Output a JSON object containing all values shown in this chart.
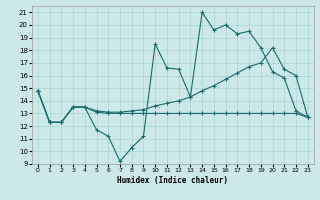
{
  "xlabel": "Humidex (Indice chaleur)",
  "bg_color": "#cce8e8",
  "line_color": "#1a6b6b",
  "grid_color": "#aad4d4",
  "xlim": [
    -0.5,
    23.5
  ],
  "ylim": [
    9,
    21.5
  ],
  "yticks": [
    9,
    10,
    11,
    12,
    13,
    14,
    15,
    16,
    17,
    18,
    19,
    20,
    21
  ],
  "xticks": [
    0,
    1,
    2,
    3,
    4,
    5,
    6,
    7,
    8,
    9,
    10,
    11,
    12,
    13,
    14,
    15,
    16,
    17,
    18,
    19,
    20,
    21,
    22,
    23
  ],
  "series1_x": [
    0,
    1,
    2,
    3,
    4,
    5,
    6,
    7,
    8,
    9,
    10,
    11,
    12,
    13,
    14,
    15,
    16,
    17,
    18,
    19,
    20,
    21,
    22,
    23
  ],
  "series1_y": [
    14.8,
    12.3,
    12.3,
    13.5,
    13.5,
    11.7,
    11.2,
    9.2,
    10.3,
    11.2,
    18.5,
    16.6,
    16.5,
    14.3,
    21.0,
    19.6,
    20.0,
    19.3,
    19.5,
    18.2,
    16.3,
    15.8,
    13.2,
    12.7
  ],
  "series2_x": [
    0,
    1,
    2,
    3,
    4,
    5,
    6,
    7,
    8,
    9,
    10,
    11,
    12,
    13,
    14,
    15,
    16,
    17,
    18,
    19,
    20,
    21,
    22,
    23
  ],
  "series2_y": [
    14.8,
    12.3,
    12.3,
    13.5,
    13.5,
    13.2,
    13.1,
    13.1,
    13.2,
    13.3,
    13.6,
    13.8,
    14.0,
    14.3,
    14.8,
    15.2,
    15.7,
    16.2,
    16.7,
    17.0,
    18.2,
    16.5,
    16.0,
    12.7
  ],
  "series3_x": [
    0,
    1,
    2,
    3,
    4,
    5,
    6,
    7,
    8,
    9,
    10,
    11,
    12,
    13,
    14,
    15,
    16,
    17,
    18,
    19,
    20,
    21,
    22,
    23
  ],
  "series3_y": [
    14.8,
    12.3,
    12.3,
    13.5,
    13.5,
    13.1,
    13.0,
    13.0,
    13.0,
    13.0,
    13.0,
    13.0,
    13.0,
    13.0,
    13.0,
    13.0,
    13.0,
    13.0,
    13.0,
    13.0,
    13.0,
    13.0,
    13.0,
    12.7
  ]
}
